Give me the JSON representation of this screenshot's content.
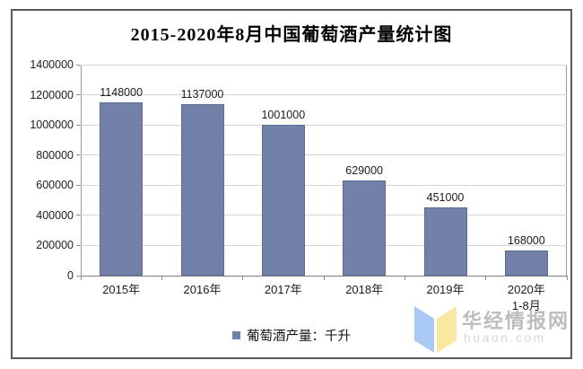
{
  "chart_data": {
    "type": "bar",
    "title": "2015-2020年8月中国葡萄酒产量统计图",
    "categories": [
      "2015年",
      "2016年",
      "2017年",
      "2018年",
      "2019年",
      "2020年"
    ],
    "category_sublabels": [
      "",
      "",
      "",
      "",
      "",
      "1-8月"
    ],
    "values": [
      1148000,
      1137000,
      1001000,
      629000,
      451000,
      168000
    ],
    "value_labels": [
      "1148000",
      "1137000",
      "1001000",
      "629000",
      "451000",
      "168000"
    ],
    "yticks": [
      0,
      200000,
      400000,
      600000,
      800000,
      1000000,
      1200000,
      1400000
    ],
    "ylim": [
      0,
      1400000
    ],
    "xlabel": "",
    "ylabel": "",
    "legend_label": "葡萄酒产量：千升",
    "legend_position": "bottom",
    "grid": true,
    "bar_color": "#7381A8",
    "bar_border_color": "#5C6B99"
  },
  "watermark": {
    "brand": "华经情报网",
    "domain": "huaon.com",
    "logo_blue": "#A9C9F4",
    "logo_yellow": "#FBE8A0"
  }
}
